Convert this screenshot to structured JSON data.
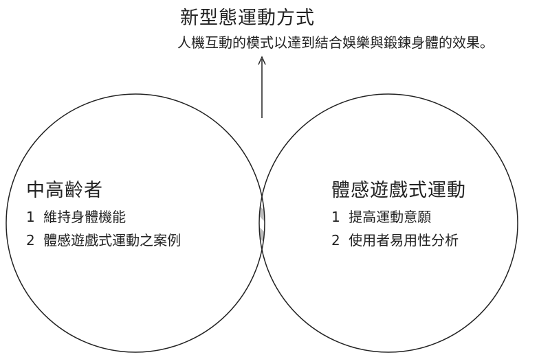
{
  "overlap": {
    "title": "新型態運動方式",
    "subtitle": "人機互動的模式以達到結合娛樂與鍛鍊身體的效果。"
  },
  "left_circle": {
    "title": "中高齡者",
    "items": [
      {
        "num": "1",
        "text": "維持身體機能"
      },
      {
        "num": "2",
        "text": "體感遊戲式運動之案例"
      }
    ]
  },
  "right_circle": {
    "title": "體感遊戲式運動",
    "items": [
      {
        "num": "1",
        "text": "提高運動意願"
      },
      {
        "num": "2",
        "text": "使用者易用性分析"
      }
    ]
  },
  "colors": {
    "stroke": "#222222",
    "hatch_stripe": "#bdbdbd",
    "background": "#ffffff"
  }
}
